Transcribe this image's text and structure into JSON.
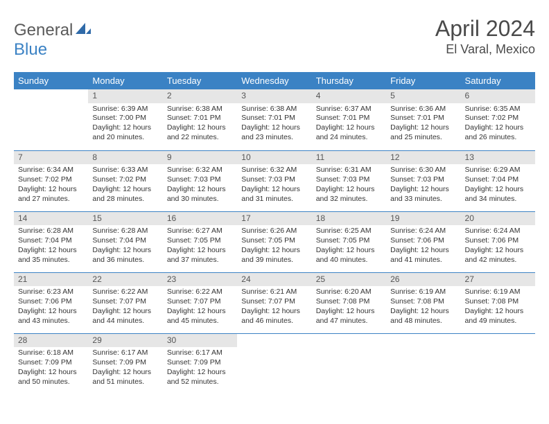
{
  "brand": {
    "part1": "General",
    "part2": "Blue"
  },
  "title": "April 2024",
  "location": "El Varal, Mexico",
  "colors": {
    "header_bg": "#3b82c4",
    "header_text": "#ffffff",
    "daynum_bg": "#e6e6e6",
    "daynum_text": "#555555",
    "body_text": "#333333",
    "border": "#3b82c4",
    "page_bg": "#ffffff",
    "title_text": "#4a4a4a"
  },
  "day_labels": [
    "Sunday",
    "Monday",
    "Tuesday",
    "Wednesday",
    "Thursday",
    "Friday",
    "Saturday"
  ],
  "weeks": [
    [
      null,
      {
        "n": "1",
        "sunrise": "6:39 AM",
        "sunset": "7:00 PM",
        "daylight": "12 hours and 20 minutes."
      },
      {
        "n": "2",
        "sunrise": "6:38 AM",
        "sunset": "7:01 PM",
        "daylight": "12 hours and 22 minutes."
      },
      {
        "n": "3",
        "sunrise": "6:38 AM",
        "sunset": "7:01 PM",
        "daylight": "12 hours and 23 minutes."
      },
      {
        "n": "4",
        "sunrise": "6:37 AM",
        "sunset": "7:01 PM",
        "daylight": "12 hours and 24 minutes."
      },
      {
        "n": "5",
        "sunrise": "6:36 AM",
        "sunset": "7:01 PM",
        "daylight": "12 hours and 25 minutes."
      },
      {
        "n": "6",
        "sunrise": "6:35 AM",
        "sunset": "7:02 PM",
        "daylight": "12 hours and 26 minutes."
      }
    ],
    [
      {
        "n": "7",
        "sunrise": "6:34 AM",
        "sunset": "7:02 PM",
        "daylight": "12 hours and 27 minutes."
      },
      {
        "n": "8",
        "sunrise": "6:33 AM",
        "sunset": "7:02 PM",
        "daylight": "12 hours and 28 minutes."
      },
      {
        "n": "9",
        "sunrise": "6:32 AM",
        "sunset": "7:03 PM",
        "daylight": "12 hours and 30 minutes."
      },
      {
        "n": "10",
        "sunrise": "6:32 AM",
        "sunset": "7:03 PM",
        "daylight": "12 hours and 31 minutes."
      },
      {
        "n": "11",
        "sunrise": "6:31 AM",
        "sunset": "7:03 PM",
        "daylight": "12 hours and 32 minutes."
      },
      {
        "n": "12",
        "sunrise": "6:30 AM",
        "sunset": "7:03 PM",
        "daylight": "12 hours and 33 minutes."
      },
      {
        "n": "13",
        "sunrise": "6:29 AM",
        "sunset": "7:04 PM",
        "daylight": "12 hours and 34 minutes."
      }
    ],
    [
      {
        "n": "14",
        "sunrise": "6:28 AM",
        "sunset": "7:04 PM",
        "daylight": "12 hours and 35 minutes."
      },
      {
        "n": "15",
        "sunrise": "6:28 AM",
        "sunset": "7:04 PM",
        "daylight": "12 hours and 36 minutes."
      },
      {
        "n": "16",
        "sunrise": "6:27 AM",
        "sunset": "7:05 PM",
        "daylight": "12 hours and 37 minutes."
      },
      {
        "n": "17",
        "sunrise": "6:26 AM",
        "sunset": "7:05 PM",
        "daylight": "12 hours and 39 minutes."
      },
      {
        "n": "18",
        "sunrise": "6:25 AM",
        "sunset": "7:05 PM",
        "daylight": "12 hours and 40 minutes."
      },
      {
        "n": "19",
        "sunrise": "6:24 AM",
        "sunset": "7:06 PM",
        "daylight": "12 hours and 41 minutes."
      },
      {
        "n": "20",
        "sunrise": "6:24 AM",
        "sunset": "7:06 PM",
        "daylight": "12 hours and 42 minutes."
      }
    ],
    [
      {
        "n": "21",
        "sunrise": "6:23 AM",
        "sunset": "7:06 PM",
        "daylight": "12 hours and 43 minutes."
      },
      {
        "n": "22",
        "sunrise": "6:22 AM",
        "sunset": "7:07 PM",
        "daylight": "12 hours and 44 minutes."
      },
      {
        "n": "23",
        "sunrise": "6:22 AM",
        "sunset": "7:07 PM",
        "daylight": "12 hours and 45 minutes."
      },
      {
        "n": "24",
        "sunrise": "6:21 AM",
        "sunset": "7:07 PM",
        "daylight": "12 hours and 46 minutes."
      },
      {
        "n": "25",
        "sunrise": "6:20 AM",
        "sunset": "7:08 PM",
        "daylight": "12 hours and 47 minutes."
      },
      {
        "n": "26",
        "sunrise": "6:19 AM",
        "sunset": "7:08 PM",
        "daylight": "12 hours and 48 minutes."
      },
      {
        "n": "27",
        "sunrise": "6:19 AM",
        "sunset": "7:08 PM",
        "daylight": "12 hours and 49 minutes."
      }
    ],
    [
      {
        "n": "28",
        "sunrise": "6:18 AM",
        "sunset": "7:09 PM",
        "daylight": "12 hours and 50 minutes."
      },
      {
        "n": "29",
        "sunrise": "6:17 AM",
        "sunset": "7:09 PM",
        "daylight": "12 hours and 51 minutes."
      },
      {
        "n": "30",
        "sunrise": "6:17 AM",
        "sunset": "7:09 PM",
        "daylight": "12 hours and 52 minutes."
      },
      null,
      null,
      null,
      null
    ]
  ],
  "labels": {
    "sunrise_prefix": "Sunrise: ",
    "sunset_prefix": "Sunset: ",
    "daylight_prefix": "Daylight: "
  }
}
